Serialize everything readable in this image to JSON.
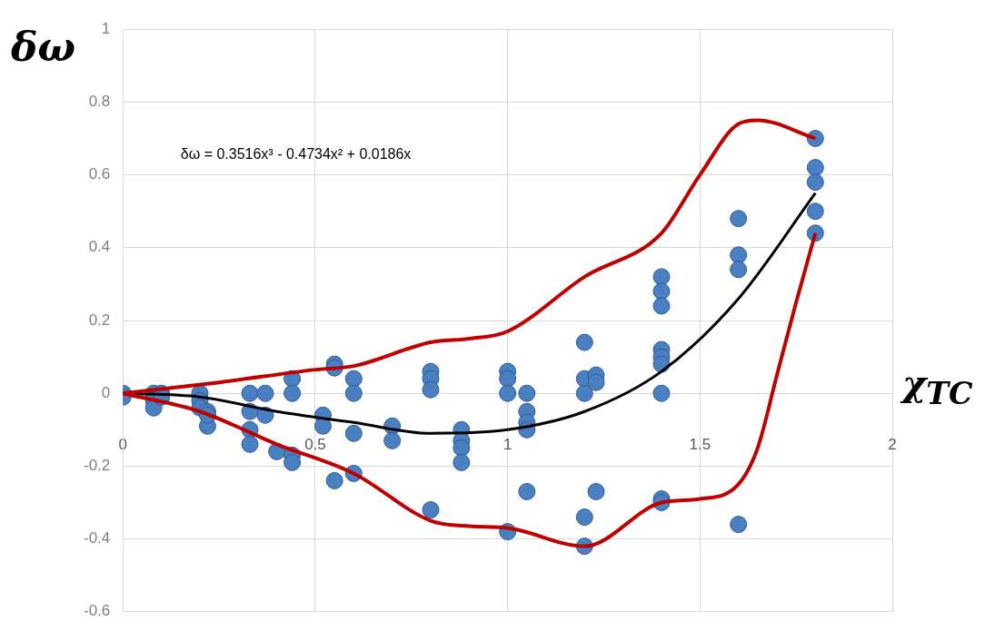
{
  "chart_data": {
    "type": "scatter",
    "xlabel": "χ$_{TC}$",
    "ylabel": "δω",
    "annotations": [
      "δω = 0.3516x³ - 0.4734x² + 0.0186x"
    ],
    "xlim": [
      0,
      2
    ],
    "ylim": [
      -0.6,
      1
    ],
    "xticks": [
      0,
      0.5,
      1,
      1.5,
      2
    ],
    "yticks": [
      -0.6,
      -0.4,
      -0.2,
      0,
      0.2,
      0.4,
      0.6,
      0.8,
      1
    ],
    "grid": true,
    "legend": false,
    "marker": "circle",
    "series": [
      {
        "type": "line",
        "marker": "none",
        "color": "#c00000",
        "x": [
          0,
          0.25,
          0.5,
          0.6,
          0.8,
          0.9,
          1.0,
          1.2,
          1.4,
          1.5,
          1.6,
          1.65,
          1.8
        ],
        "values": [
          0,
          0.03,
          0.065,
          0.075,
          0.14,
          0.15,
          0.17,
          0.32,
          0.44,
          0.6,
          0.74,
          0.75,
          0.7
        ]
      },
      {
        "type": "line",
        "marker": "none",
        "color": "#c00000",
        "x": [
          0,
          0.2,
          0.4,
          0.6,
          0.8,
          0.9,
          1.0,
          1.2,
          1.4,
          1.5,
          1.6,
          1.65,
          1.7,
          1.75,
          1.8
        ],
        "values": [
          0,
          -0.05,
          -0.14,
          -0.22,
          -0.35,
          -0.365,
          -0.37,
          -0.42,
          -0.3,
          -0.29,
          -0.25,
          -0.15,
          0.05,
          0.25,
          0.44
        ]
      },
      {
        "type": "line",
        "marker": "none",
        "color": "#000000",
        "x": [
          0,
          0.2,
          0.4,
          0.6,
          0.8,
          1.0,
          1.2,
          1.4,
          1.6,
          1.8
        ],
        "values": [
          0,
          -0.01,
          -0.05,
          -0.08,
          -0.11,
          -0.1,
          -0.05,
          0.06,
          0.26,
          0.55
        ]
      },
      {
        "color": "#4a7fc1",
        "x": [
          0,
          0,
          0.08,
          0.08,
          0.08,
          0.1,
          0.1,
          0.2,
          0.2,
          0.2,
          0.22,
          0.22,
          0.22,
          0.33,
          0.33,
          0.33,
          0.33,
          0.37,
          0.37,
          0.4,
          0.44,
          0.44,
          0.44,
          0.44,
          0.52,
          0.52,
          0.55,
          0.55,
          0.55,
          0.6,
          0.6,
          0.6,
          0.6,
          0.7,
          0.7,
          0.8,
          0.8,
          0.8,
          0.8,
          0.88,
          0.88,
          0.88,
          0.88,
          1.0,
          1.0,
          1.0,
          1.0,
          1.05,
          1.05,
          1.05,
          1.05,
          1.05,
          1.2,
          1.2,
          1.2,
          1.2,
          1.2,
          1.23,
          1.23,
          1.23,
          1.4,
          1.4,
          1.4,
          1.4,
          1.4,
          1.4,
          1.4,
          1.4,
          1.4,
          1.6,
          1.6,
          1.6,
          1.6,
          1.8,
          1.8,
          1.8,
          1.8,
          1.8
        ],
        "values": [
          0,
          -0.01,
          0,
          -0.02,
          -0.04,
          0,
          -0.01,
          0,
          -0.02,
          -0.04,
          -0.05,
          -0.09,
          -0.06,
          0,
          -0.05,
          -0.1,
          -0.14,
          0,
          -0.06,
          -0.16,
          0.04,
          0,
          -0.17,
          -0.19,
          -0.06,
          -0.09,
          0.08,
          0.07,
          -0.24,
          0.04,
          0,
          -0.11,
          -0.22,
          -0.09,
          -0.13,
          0.06,
          0.04,
          0.01,
          -0.32,
          -0.1,
          -0.13,
          -0.15,
          -0.19,
          0.06,
          0.04,
          0,
          -0.38,
          0,
          -0.05,
          -0.08,
          -0.1,
          -0.27,
          0.14,
          0.04,
          0,
          -0.34,
          -0.42,
          0.05,
          0.03,
          -0.27,
          0.32,
          0.28,
          0.24,
          0.12,
          0.1,
          0.08,
          0,
          -0.29,
          -0.3,
          0.48,
          0.38,
          0.34,
          -0.36,
          0.7,
          0.62,
          0.58,
          0.5,
          0.44
        ]
      }
    ]
  }
}
